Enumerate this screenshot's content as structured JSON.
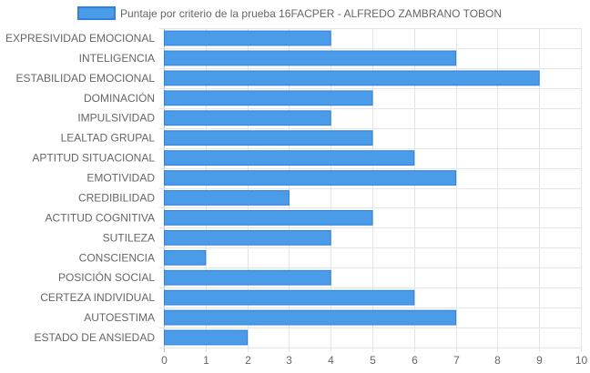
{
  "chart_data": {
    "type": "bar",
    "orientation": "horizontal",
    "categories": [
      "EXPRESIVIDAD EMOCIONAL",
      "INTELIGENCIA",
      "ESTABILIDAD EMOCIONAL",
      "DOMINACIÓN",
      "IMPULSIVIDAD",
      "LEALTAD GRUPAL",
      "APTITUD SITUACIONAL",
      "EMOTIVIDAD",
      "CREDIBILIDAD",
      "ACTITUD COGNITIVA",
      "SUTILEZA",
      "CONSCIENCIA",
      "POSICIÓN SOCIAL",
      "CERTEZA INDIVIDUAL",
      "AUTOESTIMA",
      "ESTADO DE ANSIEDAD"
    ],
    "series": [
      {
        "name": "Puntaje por criterio de la prueba 16FACPER - ALFREDO ZAMBRANO TOBON",
        "values": [
          4,
          7,
          9,
          5,
          4,
          5,
          6,
          7,
          3,
          5,
          4,
          1,
          4,
          6,
          7,
          2
        ],
        "color": "#4a9be8",
        "border_color": "#2f80e0"
      }
    ],
    "xlim": [
      0,
      10
    ],
    "x_ticks": [
      "0",
      "1",
      "2",
      "3",
      "4",
      "5",
      "6",
      "7",
      "8",
      "9",
      "10"
    ],
    "grid": true,
    "legend_position": "top"
  }
}
